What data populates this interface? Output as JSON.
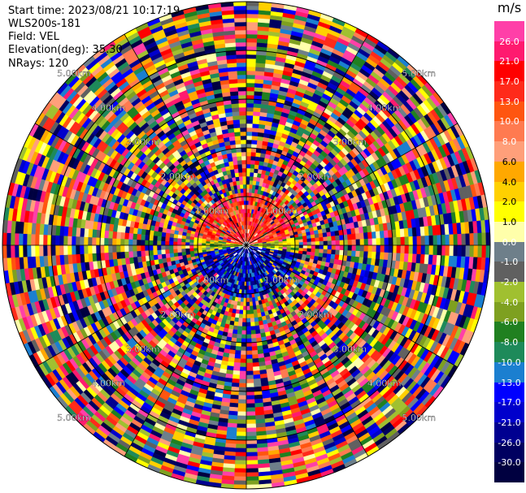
{
  "header": {
    "start_time": "Start time: 2023/08/21 10:17:19",
    "instrument": "WLS200s-181",
    "field": "Field: VEL",
    "elevation": "Elevation(deg): 35.30",
    "nrays": "NRays: 120"
  },
  "range_labels": [
    "1.00km",
    "2.00km",
    "3.00km",
    "4.00km",
    "5.00km"
  ],
  "colorbar": {
    "unit": "m/s",
    "ticks": [
      "26.0",
      "21.0",
      "17.0",
      "13.0",
      "10.0",
      "8.0",
      "6.0",
      "4.0",
      "2.0",
      "1.0",
      "0.0",
      "-1.0",
      "-2.0",
      "-4.0",
      "-6.0",
      "-8.0",
      "-10.0",
      "-13.0",
      "-17.0",
      "-21.0",
      "-26.0",
      "-30.0"
    ],
    "colors": [
      "#ff3fa8",
      "#ff1a6f",
      "#ff0000",
      "#ff2a1a",
      "#ff5510",
      "#ff7a50",
      "#ff9f7a",
      "#ffa800",
      "#ffd000",
      "#ffff00",
      "#ffffaa",
      "#6e7f8a",
      "#606060",
      "#a0c030",
      "#7ea020",
      "#208020",
      "#1e8a5a",
      "#1b7fd0",
      "#0000ff",
      "#0000cc",
      "#000090",
      "#000060",
      "#000040"
    ]
  },
  "chart_data": {
    "type": "heatmap",
    "projection": "polar-ppi",
    "field": "VEL",
    "unit": "m/s",
    "n_rays": 120,
    "max_range_km": 5.0,
    "range_rings_km": [
      1.0,
      2.0,
      3.0,
      4.0,
      5.0
    ],
    "value_range": [
      -30.0,
      26.0
    ],
    "near_field_pattern": "upwind positive (red/orange) to north, negative (blue) to south within ~1 km; noise beyond"
  }
}
